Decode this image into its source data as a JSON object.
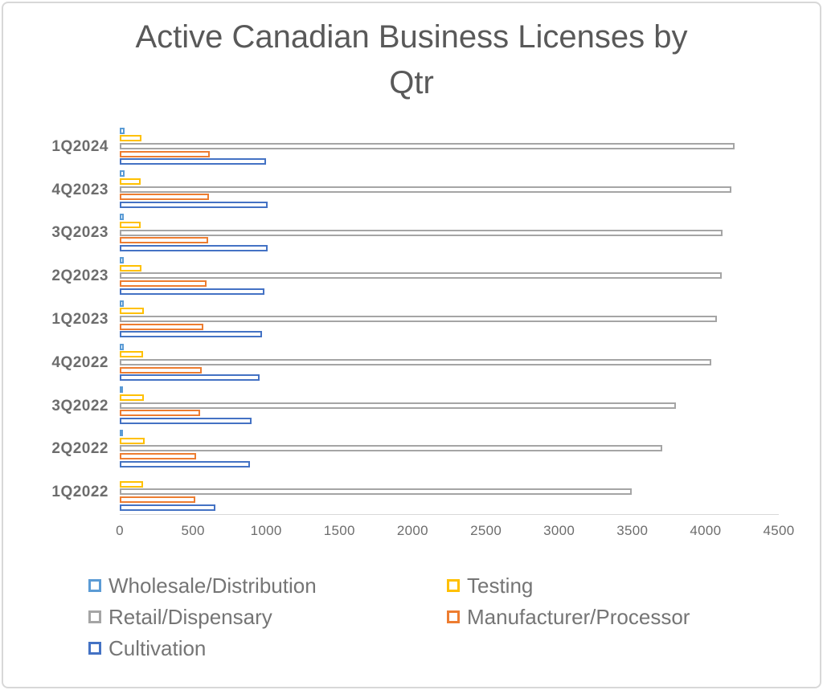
{
  "title_lines": [
    "Active Canadian Business Licenses by",
    "Qtr"
  ],
  "chart_data": {
    "type": "bar",
    "orientation": "horizontal",
    "title": "Active Canadian Business Licenses by Qtr",
    "categories": [
      "1Q2024",
      "4Q2023",
      "3Q2023",
      "2Q2023",
      "1Q2023",
      "4Q2022",
      "3Q2022",
      "2Q2022",
      "1Q2022"
    ],
    "series": [
      {
        "name": "Wholesale/Distribution",
        "color": "#5B9BD5",
        "values": [
          30,
          30,
          25,
          25,
          25,
          25,
          20,
          20,
          0
        ]
      },
      {
        "name": "Testing",
        "color": "#FFC000",
        "values": [
          150,
          140,
          145,
          150,
          165,
          160,
          165,
          170,
          160
        ]
      },
      {
        "name": "Retail/Dispensary",
        "color": "#A5A5A5",
        "values": [
          4200,
          4175,
          4115,
          4110,
          4075,
          4040,
          3800,
          3705,
          3495
        ]
      },
      {
        "name": "Manufacturer/Processor",
        "color": "#ED7D31",
        "values": [
          615,
          610,
          605,
          595,
          570,
          560,
          550,
          520,
          515
        ]
      },
      {
        "name": "Cultivation",
        "color": "#4472C4",
        "values": [
          1000,
          1010,
          1010,
          990,
          970,
          955,
          900,
          890,
          655
        ]
      }
    ],
    "xlabel": "",
    "ylabel": "",
    "xlim": [
      0,
      4500
    ],
    "xticks": [
      "0",
      "500",
      "1000",
      "1500",
      "2000",
      "2500",
      "3000",
      "3500",
      "4000",
      "4500"
    ],
    "grid": false,
    "legend_position": "bottom",
    "bar_style": "white fill with colored outline"
  }
}
